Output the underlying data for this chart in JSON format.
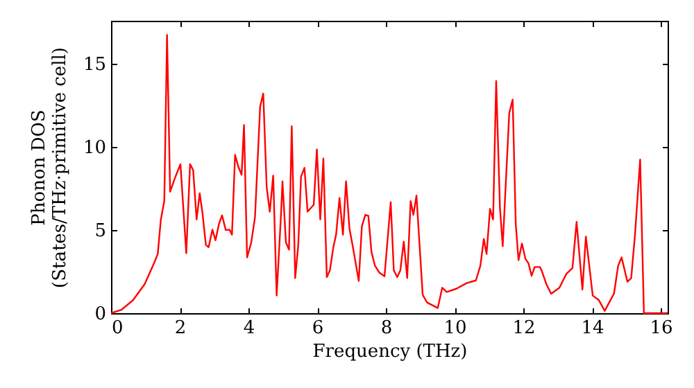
{
  "chart_data": {
    "type": "line",
    "xlabel": "Frequency (THz)",
    "ylabel": "Phonon DOS\n(States/THz·primitive cell)",
    "xlim": [
      0,
      16.2
    ],
    "ylim": [
      0,
      17.6
    ],
    "xticks": [
      0,
      2,
      4,
      6,
      8,
      10,
      12,
      14,
      16
    ],
    "yticks": [
      0,
      5,
      10,
      15
    ],
    "grid": false,
    "series": [
      {
        "color": "#ff0000",
        "x": [
          0,
          0.3,
          0.64,
          0.98,
          1.25,
          1.36,
          1.45,
          1.55,
          1.63,
          1.72,
          1.86,
          2.02,
          2.19,
          2.3,
          2.39,
          2.49,
          2.58,
          2.66,
          2.76,
          2.84,
          2.95,
          3.04,
          3.14,
          3.23,
          3.34,
          3.45,
          3.52,
          3.61,
          3.71,
          3.8,
          3.87,
          3.96,
          4.08,
          4.19,
          4.34,
          4.43,
          4.53,
          4.62,
          4.72,
          4.82,
          4.95,
          4.99,
          5.09,
          5.18,
          5.26,
          5.36,
          5.45,
          5.53,
          5.63,
          5.72,
          5.9,
          5.99,
          6.09,
          6.18,
          6.28,
          6.37,
          6.47,
          6.55,
          6.65,
          6.75,
          6.84,
          6.94,
          7.04,
          7.21,
          7.3,
          7.4,
          7.49,
          7.58,
          7.68,
          7.81,
          7.96,
          8.14,
          8.23,
          8.33,
          8.42,
          8.52,
          8.62,
          8.72,
          8.8,
          8.89,
          9.07,
          9.2,
          9.51,
          9.64,
          9.77,
          10.05,
          10.35,
          10.62,
          10.75,
          10.85,
          10.93,
          11.03,
          11.12,
          11.21,
          11.32,
          11.4,
          11.59,
          11.69,
          11.78,
          11.86,
          11.96,
          12.06,
          12.15,
          12.24,
          12.33,
          12.48,
          12.54,
          12.67,
          12.81,
          13.05,
          13.25,
          13.43,
          13.55,
          13.72,
          13.82,
          14.02,
          14.2,
          14.37,
          14.64,
          14.76,
          14.86,
          15.03,
          15.14,
          15.25,
          15.4,
          15.51,
          16.2
        ],
        "values": [
          0,
          0.2,
          0.78,
          1.75,
          3.0,
          3.56,
          5.64,
          6.75,
          16.75,
          7.31,
          8.14,
          8.97,
          3.61,
          8.97,
          8.61,
          5.64,
          7.22,
          6.06,
          4.11,
          3.97,
          5.03,
          4.39,
          5.36,
          5.89,
          5.0,
          5.03,
          4.72,
          9.53,
          8.78,
          8.33,
          11.33,
          3.36,
          4.25,
          5.78,
          12.44,
          13.22,
          7.58,
          6.11,
          8.28,
          1.06,
          6.06,
          7.94,
          4.25,
          3.83,
          11.25,
          2.11,
          4.11,
          8.22,
          8.75,
          6.11,
          6.53,
          9.86,
          5.64,
          9.31,
          2.17,
          2.58,
          3.97,
          4.72,
          6.94,
          4.72,
          7.94,
          5.08,
          3.97,
          1.94,
          5.22,
          5.92,
          5.86,
          3.69,
          2.86,
          2.44,
          2.22,
          6.69,
          2.58,
          2.17,
          2.58,
          4.31,
          2.11,
          6.75,
          5.92,
          7.08,
          1.11,
          0.64,
          0.31,
          1.53,
          1.28,
          1.47,
          1.81,
          1.97,
          2.86,
          4.47,
          3.56,
          6.28,
          5.64,
          13.97,
          6.33,
          4.03,
          12.03,
          12.86,
          5.36,
          3.19,
          4.19,
          3.28,
          3.0,
          2.25,
          2.78,
          2.78,
          2.53,
          1.75,
          1.17,
          1.53,
          2.36,
          2.72,
          5.5,
          1.42,
          4.61,
          1.06,
          0.78,
          0.14,
          1.19,
          2.86,
          3.36,
          1.89,
          2.11,
          4.72,
          9.25,
          0,
          0
        ]
      }
    ]
  }
}
